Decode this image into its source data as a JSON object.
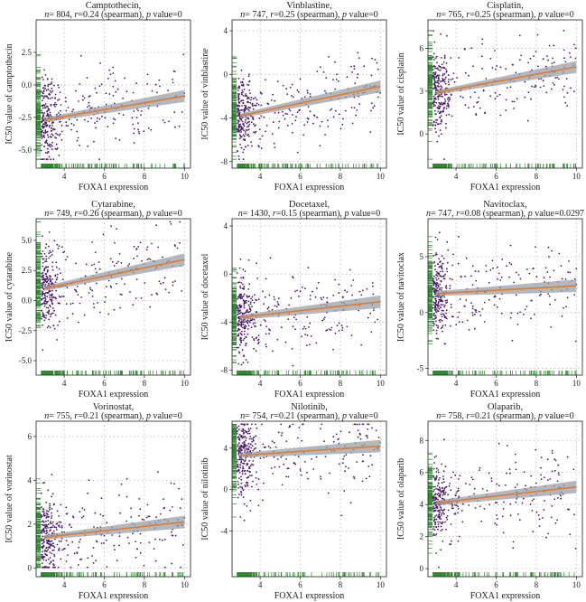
{
  "figure": {
    "background": "#ffffff",
    "colors": {
      "points": "#4b1a6b",
      "fit_line": "#e07a2e",
      "ci_band": "#9aa0a8",
      "rug": "#2e8b2e",
      "grid": "#b8b8b8",
      "axis": "#222222"
    }
  },
  "chart_data": [
    {
      "type": "scatter",
      "title": "Camptothecin,",
      "stats": {
        "n": "804",
        "r": "0.24",
        "p": "0"
      },
      "xlabel": "FOXA1 expression",
      "ylabel": "IC50 value of camptothecin",
      "xticks": [
        4,
        6,
        8,
        10
      ],
      "xlim": [
        2.6,
        10.3
      ],
      "yticks": [
        -5.0,
        -2.5,
        0.0,
        2.5
      ],
      "yticklabels": [
        "-5.0",
        "-2.5",
        "0.0",
        "2.5"
      ],
      "ylim": [
        -6.4,
        5.0
      ],
      "fit": {
        "x": [
          3,
          10
        ],
        "y": [
          -2.7,
          -0.85
        ]
      },
      "grid": true
    },
    {
      "type": "scatter",
      "title": "Vinblastine,",
      "stats": {
        "n": "747",
        "r": "0.25",
        "p": "0"
      },
      "xlabel": "FOXA1 expression",
      "ylabel": "IC50 value of vinblastine",
      "xticks": [
        4,
        6,
        8,
        10
      ],
      "xlim": [
        2.6,
        10.3
      ],
      "yticks": [
        -8,
        -4,
        0,
        4
      ],
      "yticklabels": [
        "-8",
        "-4",
        "0",
        "4"
      ],
      "ylim": [
        -8.6,
        5.0
      ],
      "fit": {
        "x": [
          3,
          10
        ],
        "y": [
          -3.8,
          -1.1
        ]
      },
      "grid": true
    },
    {
      "type": "scatter",
      "title": "Cisplatin,",
      "stats": {
        "n": "765",
        "r": "0.25",
        "p": "0"
      },
      "xlabel": "FOXA1 expression",
      "ylabel": "IC50 value of cisplatin",
      "xticks": [
        4,
        6,
        8,
        10
      ],
      "xlim": [
        2.6,
        10.3
      ],
      "yticks": [
        0,
        3,
        6
      ],
      "yticklabels": [
        "0",
        "3",
        "6"
      ],
      "ylim": [
        -2.4,
        8.0
      ],
      "fit": {
        "x": [
          3,
          10
        ],
        "y": [
          2.9,
          4.7
        ]
      },
      "grid": true
    },
    {
      "type": "scatter",
      "title": "Cytarabine,",
      "stats": {
        "n": "749",
        "r": "0.26",
        "p": "0"
      },
      "xlabel": "FOXA1 expression",
      "ylabel": "IC50 value of cytarabine",
      "xticks": [
        4,
        6,
        8,
        10
      ],
      "xlim": [
        2.6,
        10.3
      ],
      "yticks": [
        -5.0,
        -2.5,
        0.0,
        2.5,
        5.0
      ],
      "yticklabels": [
        "-5.0",
        "-2.5",
        "0.0",
        "2.5",
        "5.0"
      ],
      "ylim": [
        -6.2,
        6.8
      ],
      "fit": {
        "x": [
          3,
          10
        ],
        "y": [
          1.0,
          3.4
        ]
      },
      "grid": true
    },
    {
      "type": "scatter",
      "title": "Docetaxel,",
      "stats": {
        "n": "1430",
        "r": "0.15",
        "p": "0"
      },
      "xlabel": "FOXA1 expression",
      "ylabel": "IC50 value of docetaxel",
      "xticks": [
        4,
        6,
        8,
        10
      ],
      "xlim": [
        2.6,
        10.3
      ],
      "yticks": [
        -8,
        -4,
        0,
        4
      ],
      "yticklabels": [
        "-8",
        "-4",
        "0",
        "4"
      ],
      "ylim": [
        -8.4,
        4.6
      ],
      "fit": {
        "x": [
          3,
          10
        ],
        "y": [
          -3.6,
          -2.3
        ]
      },
      "grid": true
    },
    {
      "type": "scatter",
      "title": "Navitoclax,",
      "stats": {
        "n": "747",
        "r": "0.08",
        "p": "0.0297"
      },
      "xlabel": "FOXA1 expression",
      "ylabel": "IC50 value of navitoclax",
      "xticks": [
        4,
        6,
        8,
        10
      ],
      "xlim": [
        2.6,
        10.3
      ],
      "yticks": [
        -5,
        0,
        5
      ],
      "yticklabels": [
        "-5",
        "0",
        "5"
      ],
      "ylim": [
        -5.6,
        8.4
      ],
      "fit": {
        "x": [
          3,
          10
        ],
        "y": [
          1.7,
          2.4
        ]
      },
      "grid": true
    },
    {
      "type": "scatter",
      "title": "Vorinostat,",
      "stats": {
        "n": "755",
        "r": "0.21",
        "p": "0"
      },
      "xlabel": "FOXA1 expression",
      "ylabel": "IC50 value of vorinostat",
      "xticks": [
        4,
        6,
        8,
        10
      ],
      "xlim": [
        2.6,
        10.3
      ],
      "yticks": [
        0,
        2,
        4,
        6
      ],
      "yticklabels": [
        "0",
        "2",
        "4",
        "6"
      ],
      "ylim": [
        -0.4,
        6.7
      ],
      "fit": {
        "x": [
          3,
          10
        ],
        "y": [
          1.4,
          2.1
        ]
      },
      "grid": true
    },
    {
      "type": "scatter",
      "title": "Nilotinib,",
      "stats": {
        "n": "754",
        "r": "0.21",
        "p": "0"
      },
      "xlabel": "FOXA1 expression",
      "ylabel": "IC50 value of nilotinib",
      "xticks": [
        4,
        6,
        8,
        10
      ],
      "xlim": [
        2.6,
        10.3
      ],
      "yticks": [
        -4,
        0,
        4
      ],
      "yticklabels": [
        "-4",
        "0",
        "4"
      ],
      "ylim": [
        -8.4,
        6.6
      ],
      "fit": {
        "x": [
          3,
          10
        ],
        "y": [
          3.3,
          4.2
        ]
      },
      "grid": true
    },
    {
      "type": "scatter",
      "title": "Olaparib,",
      "stats": {
        "n": "758",
        "r": "0.21",
        "p": "0"
      },
      "xlabel": "FOXA1 expression",
      "ylabel": "IC50 value of olaparib",
      "xticks": [
        4,
        6,
        8,
        10
      ],
      "xlim": [
        2.6,
        10.3
      ],
      "yticks": [
        0,
        2,
        4,
        6,
        8
      ],
      "yticklabels": [
        "0",
        "2",
        "4",
        "6",
        "8"
      ],
      "ylim": [
        -0.5,
        9.2
      ],
      "fit": {
        "x": [
          3,
          10
        ],
        "y": [
          4.1,
          5.1
        ]
      },
      "grid": true
    }
  ]
}
